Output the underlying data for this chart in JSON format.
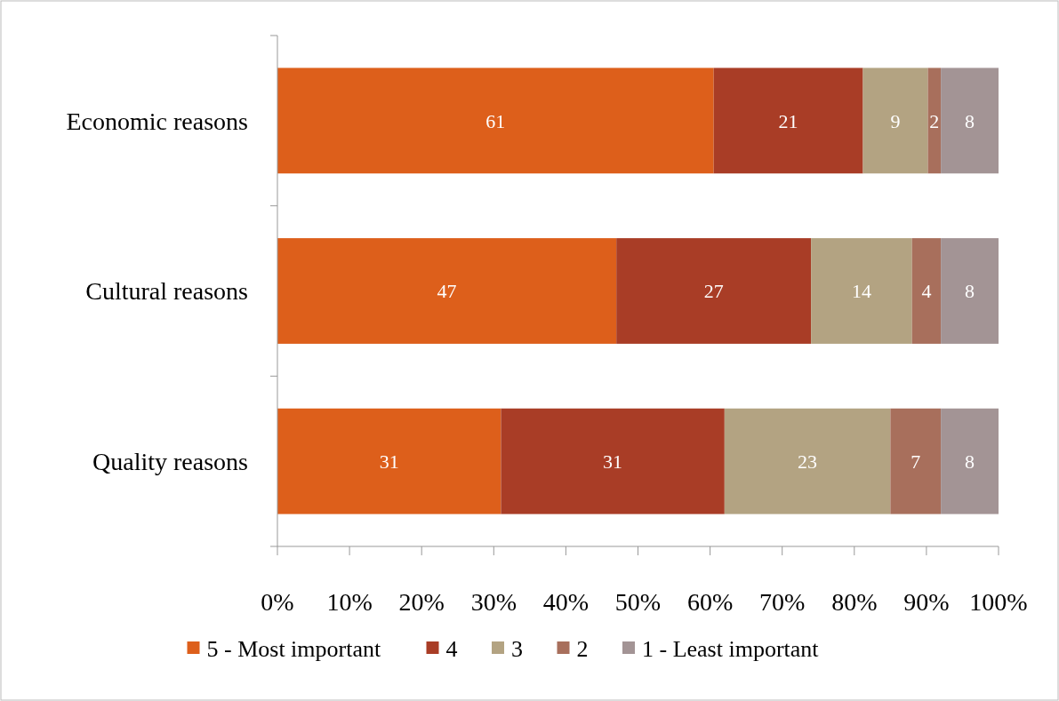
{
  "chart_data": {
    "type": "bar",
    "orientation": "horizontal",
    "stacked": true,
    "categories": [
      "Economic reasons",
      "Cultural reasons",
      "Quality reasons"
    ],
    "series": [
      {
        "name": "5 - Most important",
        "color": "#dd5f1b",
        "values": [
          60.5,
          47,
          31
        ],
        "value_labels": [
          "61",
          "47",
          "31"
        ]
      },
      {
        "name": "4",
        "color": "#a93d26",
        "values": [
          20.7,
          27,
          31
        ],
        "value_labels": [
          "21",
          "27",
          "31"
        ]
      },
      {
        "name": "3",
        "color": "#b3a382",
        "values": [
          9,
          14,
          23
        ],
        "value_labels": [
          "9",
          "14",
          "23"
        ]
      },
      {
        "name": "2",
        "color": "#a86f5c",
        "values": [
          1.8,
          4,
          7
        ],
        "value_labels": [
          "2",
          "4",
          "7"
        ]
      },
      {
        "name": "1 - Least important",
        "color": "#a39495",
        "values": [
          8,
          8,
          8
        ],
        "value_labels": [
          "8",
          "8",
          "8"
        ]
      }
    ],
    "xlim": [
      0,
      100
    ],
    "xticks": [
      {
        "value": 0,
        "label": "0%"
      },
      {
        "value": 10,
        "label": "10%"
      },
      {
        "value": 20,
        "label": "20%"
      },
      {
        "value": 30,
        "label": "30%"
      },
      {
        "value": 40,
        "label": "40%"
      },
      {
        "value": 50,
        "label": "50%"
      },
      {
        "value": 60,
        "label": "60%"
      },
      {
        "value": 70,
        "label": "70%"
      },
      {
        "value": 80,
        "label": "80%"
      },
      {
        "value": 90,
        "label": "90%"
      },
      {
        "value": 100,
        "label": "100%"
      }
    ],
    "grid": false,
    "legend": "bottom"
  }
}
